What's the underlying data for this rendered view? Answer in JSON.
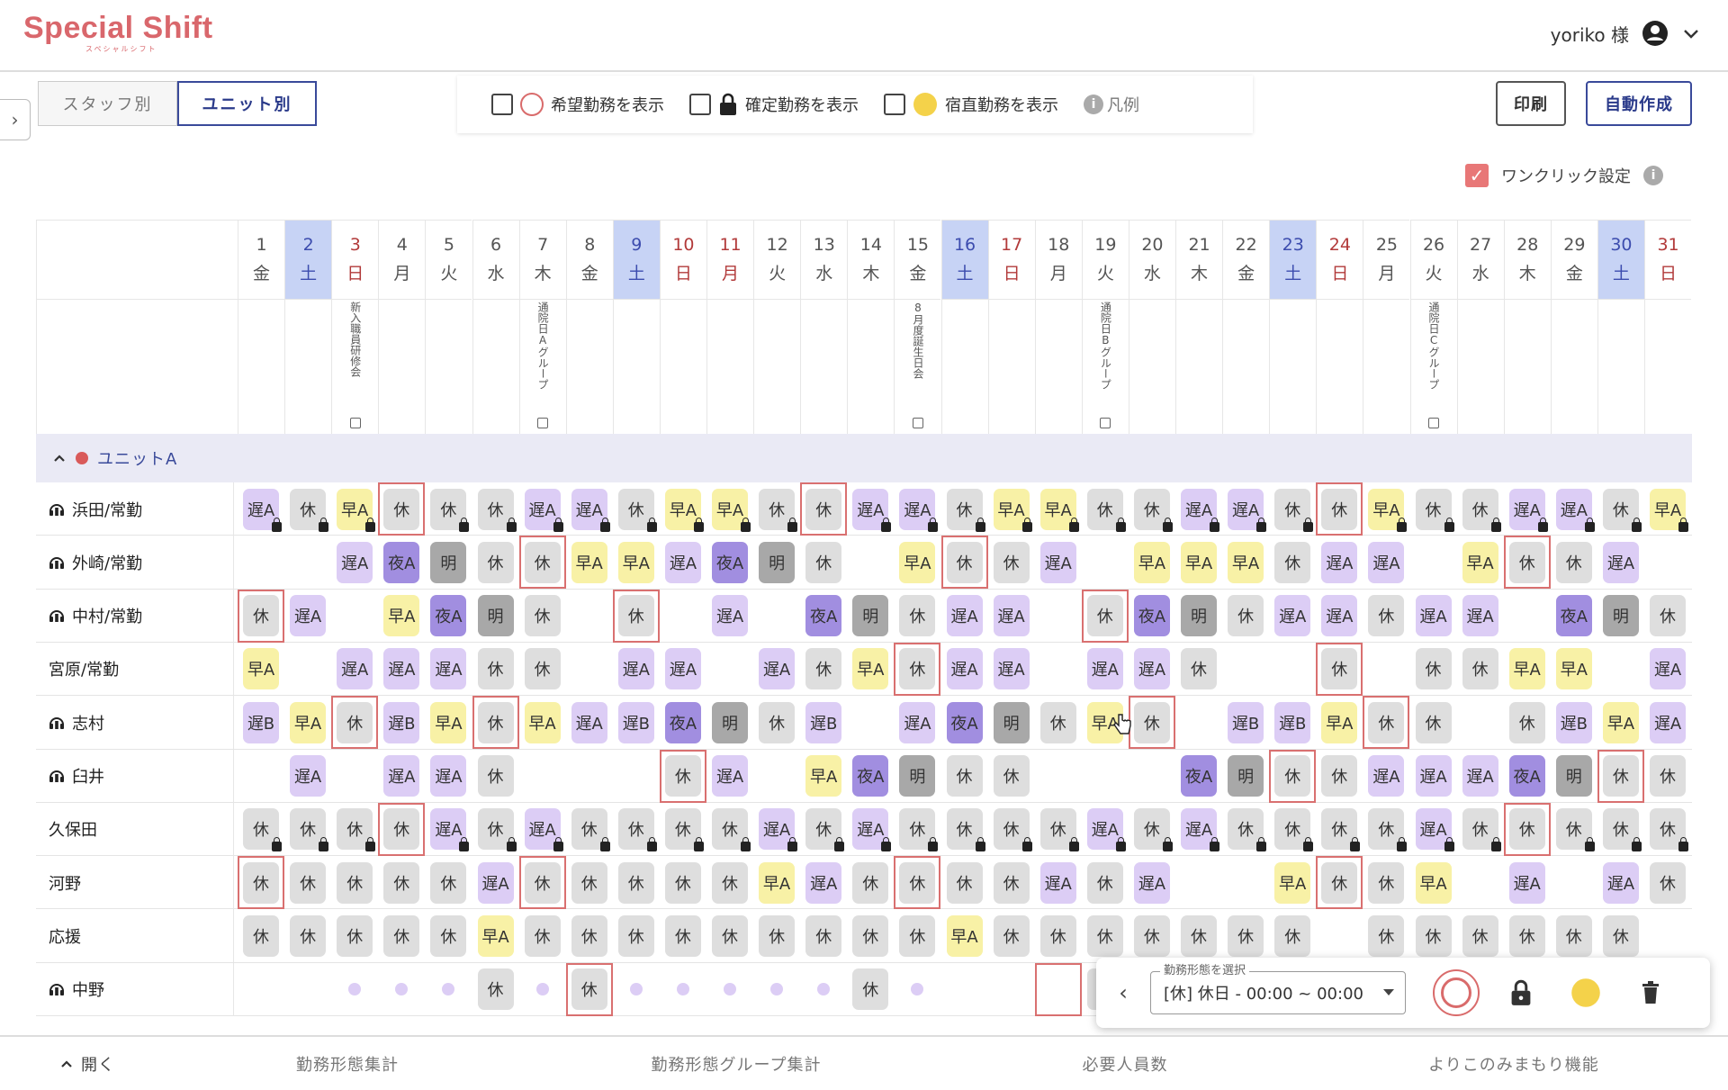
{
  "app": {
    "logo": "Special Shift",
    "logo_sub": "スペシャルシフト"
  },
  "user": {
    "name": "yoriko 様",
    "avatar_icon": "user-circle-icon",
    "menu_icon": "chevron-down-icon"
  },
  "view_tabs": [
    {
      "label": "スタッフ別",
      "active": false
    },
    {
      "label": "ユニット別",
      "active": true
    }
  ],
  "filters": {
    "wish": {
      "label": "希望勤務を表示",
      "checked": false,
      "icon": "circle-icon"
    },
    "confirmed": {
      "label": "確定勤務を表示",
      "checked": false,
      "icon": "lock-icon"
    },
    "night": {
      "label": "宿直勤務を表示",
      "checked": false,
      "icon": "moon-icon"
    },
    "legend": {
      "label": "凡例",
      "icon": "info-icon"
    }
  },
  "buttons": {
    "print": "印刷",
    "auto": "自動作成"
  },
  "oneclick": {
    "label": "ワンクリック設定",
    "checked": true
  },
  "colors": {
    "brand": "#d9676c",
    "primary": "#3a4a9a",
    "early": "#f8f1a6",
    "late": "#dccdf5",
    "night": "#a18ee0",
    "after": "#a8a8a8",
    "off": "#dedede",
    "saturday": "#c7d3f5",
    "sunday_text": "#b23a3a",
    "selection": "#d97070"
  },
  "days": [
    {
      "d": "1",
      "w": "金"
    },
    {
      "d": "2",
      "w": "土"
    },
    {
      "d": "3",
      "w": "日"
    },
    {
      "d": "4",
      "w": "月"
    },
    {
      "d": "5",
      "w": "火"
    },
    {
      "d": "6",
      "w": "水"
    },
    {
      "d": "7",
      "w": "木"
    },
    {
      "d": "8",
      "w": "金"
    },
    {
      "d": "9",
      "w": "土"
    },
    {
      "d": "10",
      "w": "日"
    },
    {
      "d": "11",
      "w": "月"
    },
    {
      "d": "12",
      "w": "火"
    },
    {
      "d": "13",
      "w": "水"
    },
    {
      "d": "14",
      "w": "木"
    },
    {
      "d": "15",
      "w": "金"
    },
    {
      "d": "16",
      "w": "土"
    },
    {
      "d": "17",
      "w": "日"
    },
    {
      "d": "18",
      "w": "月"
    },
    {
      "d": "19",
      "w": "火"
    },
    {
      "d": "20",
      "w": "水"
    },
    {
      "d": "21",
      "w": "木"
    },
    {
      "d": "22",
      "w": "金"
    },
    {
      "d": "23",
      "w": "土"
    },
    {
      "d": "24",
      "w": "日"
    },
    {
      "d": "25",
      "w": "月"
    },
    {
      "d": "26",
      "w": "火"
    },
    {
      "d": "27",
      "w": "水"
    },
    {
      "d": "28",
      "w": "木"
    },
    {
      "d": "29",
      "w": "金"
    },
    {
      "d": "30",
      "w": "土"
    },
    {
      "d": "31",
      "w": "日"
    }
  ],
  "day_types": [
    "",
    "sat",
    "sun",
    "",
    "",
    "",
    "",
    "",
    "sat",
    "sun",
    "sun",
    "",
    "",
    "",
    "",
    "sat",
    "sun",
    "",
    "",
    "",
    "",
    "",
    "sat",
    "sun",
    "",
    "",
    "",
    "",
    "",
    "sat",
    "sun"
  ],
  "events": [
    {
      "day": 3,
      "text": "新入職員研修会"
    },
    {
      "day": 7,
      "text": "通院日Aグループ"
    },
    {
      "day": 15,
      "text": "8月度誕生日会"
    },
    {
      "day": 19,
      "text": "通院日Bグループ"
    },
    {
      "day": 26,
      "text": "通院日Cグループ"
    }
  ],
  "unit": {
    "name": "ユニットA",
    "collapse_icon": "chevron-up-icon"
  },
  "shift_names": {
    "hA": "早A",
    "hB": "早B",
    "oA": "遅A",
    "oB": "遅B",
    "yA": "夜A",
    "ake": "明",
    "kyu": "休"
  },
  "staff": [
    {
      "name": "浜田/常勤",
      "flag": true,
      "shifts": [
        "oA",
        "kyu",
        "hA",
        "kyu",
        "kyu",
        "kyu",
        "oA",
        "oA",
        "kyu",
        "hA",
        "hA",
        "kyu",
        "kyu",
        "oA",
        "oA",
        "kyu",
        "hA",
        "hA",
        "kyu",
        "kyu",
        "oA",
        "oA",
        "kyu",
        "kyu",
        "hA",
        "kyu",
        "kyu",
        "oA",
        "oA",
        "kyu",
        "hA"
      ],
      "locks": [
        1,
        2,
        3,
        5,
        6,
        7,
        8,
        9,
        10,
        11,
        12,
        14,
        15,
        16,
        17,
        18,
        19,
        20,
        21,
        22,
        23,
        25,
        26,
        27,
        28,
        29,
        30,
        31
      ],
      "selected": [
        4,
        13,
        24
      ]
    },
    {
      "name": "外崎/常勤",
      "flag": true,
      "shifts": [
        "",
        "",
        "oA",
        "yA",
        "ake",
        "kyu",
        "kyu",
        "hA",
        "hA",
        "oA",
        "yA",
        "ake",
        "kyu",
        "",
        "hA",
        "kyu",
        "kyu",
        "oA",
        "",
        "hA",
        "hA",
        "hA",
        "kyu",
        "oA",
        "oA",
        "",
        "hA",
        "kyu",
        "kyu",
        "oA",
        ""
      ],
      "locks": [],
      "selected": [
        7,
        16,
        28
      ]
    },
    {
      "name": "中村/常勤",
      "flag": true,
      "shifts": [
        "kyu",
        "oA",
        "",
        "hA",
        "yA",
        "ake",
        "kyu",
        "",
        "kyu",
        "",
        "oA",
        "",
        "yA",
        "ake",
        "kyu",
        "oA",
        "oA",
        "",
        "kyu",
        "yA",
        "ake",
        "kyu",
        "oA",
        "oA",
        "kyu",
        "oA",
        "oA",
        "",
        "yA",
        "ake",
        "kyu"
      ],
      "locks": [],
      "selected": [
        1,
        9,
        19
      ]
    },
    {
      "name": "宮原/常勤",
      "flag": false,
      "shifts": [
        "hA",
        "",
        "oA",
        "oA",
        "oA",
        "kyu",
        "kyu",
        "",
        "oA",
        "oA",
        "",
        "oA",
        "kyu",
        "hA",
        "kyu",
        "oA",
        "oA",
        "",
        "oA",
        "oA",
        "kyu",
        "",
        "",
        "kyu",
        "",
        "kyu",
        "kyu",
        "hA",
        "hA",
        "",
        "oA"
      ],
      "locks": [],
      "selected": [
        15,
        24
      ]
    },
    {
      "name": "志村",
      "flag": true,
      "shifts": [
        "oB",
        "hA",
        "kyu",
        "oB",
        "hA",
        "kyu",
        "hA",
        "oA",
        "oB",
        "yA",
        "ake",
        "kyu",
        "oB",
        "",
        "oA",
        "yA",
        "ake",
        "kyu",
        "hA",
        "kyu",
        "",
        "oB",
        "oB",
        "hA",
        "kyu",
        "kyu",
        "",
        "kyu",
        "oB",
        "hA",
        "oA"
      ],
      "locks": [],
      "selected": [
        3,
        6,
        20,
        25
      ]
    },
    {
      "name": "臼井",
      "flag": true,
      "shifts": [
        "",
        "oA",
        "",
        "oA",
        "oA",
        "kyu",
        "",
        "",
        "",
        "kyu",
        "oA",
        "",
        "hA",
        "yA",
        "ake",
        "kyu",
        "kyu",
        "",
        "",
        "",
        "yA",
        "ake",
        "kyu",
        "kyu",
        "oA",
        "oA",
        "oA",
        "yA",
        "ake",
        "kyu",
        "kyu"
      ],
      "locks": [],
      "selected": [
        10,
        23,
        30
      ]
    },
    {
      "name": "久保田",
      "flag": false,
      "shifts": [
        "kyu",
        "kyu",
        "kyu",
        "kyu",
        "oA",
        "kyu",
        "oA",
        "kyu",
        "kyu",
        "kyu",
        "kyu",
        "oA",
        "kyu",
        "oA",
        "kyu",
        "kyu",
        "kyu",
        "kyu",
        "oA",
        "kyu",
        "oA",
        "kyu",
        "kyu",
        "kyu",
        "kyu",
        "oA",
        "kyu",
        "kyu",
        "kyu",
        "kyu",
        "kyu"
      ],
      "locks": [
        1,
        2,
        3,
        5,
        6,
        7,
        8,
        9,
        10,
        11,
        12,
        13,
        14,
        15,
        16,
        17,
        18,
        19,
        20,
        21,
        22,
        23,
        24,
        25,
        26,
        27,
        29,
        30,
        31
      ],
      "selected": [
        4,
        28
      ]
    },
    {
      "name": "河野",
      "flag": false,
      "shifts": [
        "kyu",
        "kyu",
        "kyu",
        "kyu",
        "kyu",
        "oA",
        "kyu",
        "kyu",
        "kyu",
        "kyu",
        "kyu",
        "hA",
        "oA",
        "kyu",
        "kyu",
        "kyu",
        "kyu",
        "oA",
        "kyu",
        "oA",
        "",
        "",
        "hA",
        "kyu",
        "kyu",
        "hA",
        "",
        "oA",
        "",
        "oA",
        "kyu"
      ],
      "locks": [],
      "selected": [
        1,
        7,
        15,
        24
      ]
    },
    {
      "name": "応援",
      "flag": false,
      "shifts": [
        "kyu",
        "kyu",
        "kyu",
        "kyu",
        "kyu",
        "hA",
        "kyu",
        "kyu",
        "kyu",
        "kyu",
        "kyu",
        "kyu",
        "kyu",
        "kyu",
        "kyu",
        "hA",
        "kyu",
        "kyu",
        "kyu",
        "kyu",
        "kyu",
        "kyu",
        "kyu",
        "",
        "kyu",
        "kyu",
        "kyu",
        "kyu",
        "kyu",
        "kyu",
        ""
      ],
      "locks": [],
      "selected": []
    },
    {
      "name": "中野",
      "flag": true,
      "shifts": [
        "",
        "",
        "p",
        "p",
        "p",
        "kyu",
        "p",
        "kyu",
        "p",
        "p",
        "p",
        "p",
        "p",
        "kyu",
        "p",
        "",
        "",
        "",
        "kyu",
        "",
        "",
        "",
        "",
        "",
        "",
        "",
        "",
        "",
        "",
        "",
        ""
      ],
      "locks": [],
      "selected": [
        8,
        18
      ]
    }
  ],
  "panel": {
    "label": "勤務形態を選択",
    "value": "[休] 休日 - 00:00 ~ 00:00",
    "back_icon": "chevron-left-icon",
    "wish_icon": "circle-icon",
    "lock_icon": "lock-icon",
    "night_icon": "moon-icon",
    "delete_icon": "trash-icon"
  },
  "footer": {
    "open": "開く",
    "tabs": [
      "勤務形態集計",
      "勤務形態グループ集計",
      "必要人員数",
      "よりこのみまもり機能"
    ]
  }
}
